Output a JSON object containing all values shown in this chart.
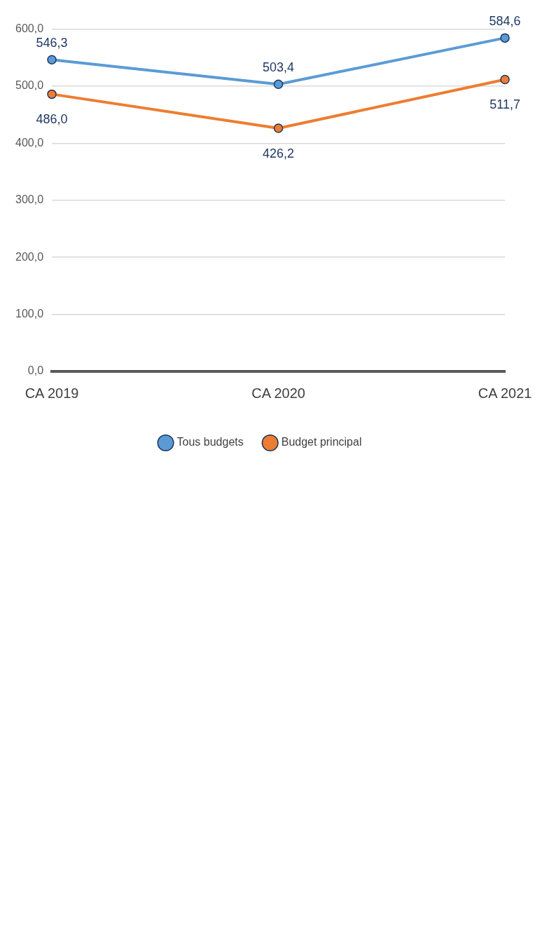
{
  "chart_data": {
    "type": "line",
    "categories": [
      "CA 2019",
      "CA 2020",
      "CA 2021"
    ],
    "series": [
      {
        "name": "Tous budgets",
        "color": "#5b9bd5",
        "values": [
          546.3,
          503.4,
          584.6
        ],
        "value_labels": [
          "546,3",
          "503,4",
          "584,6"
        ]
      },
      {
        "name": "Budget principal",
        "color": "#ed7d31",
        "values": [
          486.0,
          426.2,
          511.7
        ],
        "value_labels": [
          "486,0",
          "426,2",
          "511,7"
        ]
      }
    ],
    "ylim": [
      0,
      600
    ],
    "yticks": [
      {
        "value": 0,
        "label": "0,0"
      },
      {
        "value": 100,
        "label": "100,0"
      },
      {
        "value": 200,
        "label": "200,0"
      },
      {
        "value": 300,
        "label": "300,0"
      },
      {
        "value": 400,
        "label": "400,0"
      },
      {
        "value": 500,
        "label": "500,0"
      },
      {
        "value": 600,
        "label": "600,0"
      }
    ],
    "grid": "y",
    "legend": "bottom",
    "marker": "circle",
    "line_style": "solid"
  }
}
